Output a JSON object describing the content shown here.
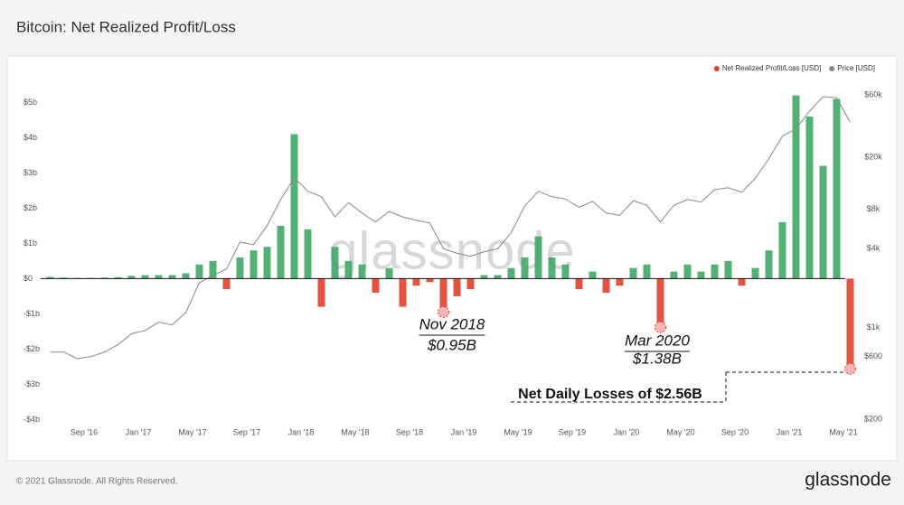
{
  "chart_data": {
    "type": "bar",
    "title": "Bitcoin: Net Realized Profit/Loss",
    "watermark": "glassnode",
    "footer": "© 2021 Glassnode. All Rights Reserved.",
    "logo": "glassnode",
    "x": [
      "2016-06",
      "2016-07",
      "2016-08",
      "2016-09",
      "2016-10",
      "2016-11",
      "2016-12",
      "2017-01",
      "2017-02",
      "2017-03",
      "2017-04",
      "2017-05",
      "2017-06",
      "2017-07",
      "2017-08",
      "2017-09",
      "2017-10",
      "2017-11",
      "2017-12",
      "2018-01",
      "2018-02",
      "2018-03",
      "2018-04",
      "2018-05",
      "2018-06",
      "2018-07",
      "2018-08",
      "2018-09",
      "2018-10",
      "2018-11",
      "2018-12",
      "2019-01",
      "2019-02",
      "2019-03",
      "2019-04",
      "2019-05",
      "2019-06",
      "2019-07",
      "2019-08",
      "2019-09",
      "2019-10",
      "2019-11",
      "2019-12",
      "2020-01",
      "2020-02",
      "2020-03",
      "2020-04",
      "2020-05",
      "2020-06",
      "2020-07",
      "2020-08",
      "2020-09",
      "2020-10",
      "2020-11",
      "2020-12",
      "2021-01",
      "2021-02",
      "2021-03",
      "2021-04",
      "2021-05"
    ],
    "xticks": [
      {
        "value": "2016-09",
        "label": "Sep '16"
      },
      {
        "value": "2017-01",
        "label": "Jan '17"
      },
      {
        "value": "2017-05",
        "label": "May '17"
      },
      {
        "value": "2017-09",
        "label": "Sep '17"
      },
      {
        "value": "2018-01",
        "label": "Jan '18"
      },
      {
        "value": "2018-05",
        "label": "May '18"
      },
      {
        "value": "2018-09",
        "label": "Sep '18"
      },
      {
        "value": "2019-01",
        "label": "Jan '19"
      },
      {
        "value": "2019-05",
        "label": "May '19"
      },
      {
        "value": "2019-09",
        "label": "Sep '19"
      },
      {
        "value": "2020-01",
        "label": "Jan '20"
      },
      {
        "value": "2020-05",
        "label": "May '20"
      },
      {
        "value": "2020-09",
        "label": "Sep '20"
      },
      {
        "value": "2021-01",
        "label": "Jan '21"
      },
      {
        "value": "2021-05",
        "label": "May '21"
      }
    ],
    "series": [
      {
        "name": "Net Realized Profit/Loss [USD]",
        "color": "#e0402a",
        "positive_color": "#41a866",
        "values": [
          0.05,
          0.03,
          0.02,
          0.02,
          0.03,
          0.04,
          0.08,
          0.1,
          0.1,
          0.1,
          0.15,
          0.4,
          0.5,
          -0.3,
          0.6,
          0.8,
          0.9,
          1.5,
          4.1,
          1.4,
          -0.8,
          0.9,
          0.5,
          0.4,
          -0.4,
          0.3,
          -0.8,
          -0.2,
          -0.1,
          -0.95,
          -0.5,
          -0.3,
          0.1,
          0.1,
          0.3,
          0.6,
          1.2,
          0.6,
          0.4,
          -0.3,
          0.2,
          -0.4,
          -0.2,
          0.3,
          0.4,
          -1.38,
          0.2,
          0.4,
          0.2,
          0.4,
          0.5,
          -0.2,
          0.3,
          0.8,
          1.6,
          5.2,
          4.6,
          3.2,
          5.1,
          -2.56
        ]
      },
      {
        "name": "Price [USD]",
        "color": "#888888",
        "axis": "y2",
        "values": [
          650,
          650,
          580,
          600,
          650,
          740,
          900,
          950,
          1100,
          1050,
          1300,
          2200,
          2500,
          2800,
          4500,
          4300,
          6000,
          9500,
          14000,
          11000,
          10000,
          7000,
          9000,
          7500,
          6400,
          7700,
          7000,
          6600,
          6300,
          4000,
          3700,
          3500,
          3800,
          4000,
          5300,
          8500,
          11000,
          10000,
          9600,
          8300,
          9200,
          7500,
          7200,
          9300,
          8600,
          6400,
          8600,
          9500,
          9100,
          11300,
          11700,
          10800,
          13800,
          19500,
          29000,
          33000,
          45000,
          58000,
          57000,
          37000
        ]
      }
    ],
    "ylim": [
      -4.4,
      5.6
    ],
    "yticks": [
      {
        "value": 5,
        "label": "$5b"
      },
      {
        "value": 4,
        "label": "$4b"
      },
      {
        "value": 3,
        "label": "$3b"
      },
      {
        "value": 2,
        "label": "$2b"
      },
      {
        "value": 1,
        "label": "$1b"
      },
      {
        "value": 0,
        "label": "$0"
      },
      {
        "value": -1,
        "label": "-$1b"
      },
      {
        "value": -2,
        "label": "-$2b"
      },
      {
        "value": -3,
        "label": "-$3b"
      },
      {
        "value": -4,
        "label": "-$4b"
      }
    ],
    "y2lim": [
      155,
      76000
    ],
    "y2_log": true,
    "y2ticks": [
      {
        "value": 60000,
        "label": "$60k"
      },
      {
        "value": 20000,
        "label": "$20k"
      },
      {
        "value": 8000,
        "label": "$8k"
      },
      {
        "value": 4000,
        "label": "$4k"
      },
      {
        "value": 1000,
        "label": "$1k"
      },
      {
        "value": 600,
        "label": "$600"
      },
      {
        "value": 200,
        "label": "$200"
      }
    ],
    "grid": false,
    "legend": "top-right",
    "annotations": [
      "Nov 2018",
      "$0.95B",
      "Mar 2020",
      "$1.38B",
      "Net Daily Losses of $2.56B"
    ]
  }
}
